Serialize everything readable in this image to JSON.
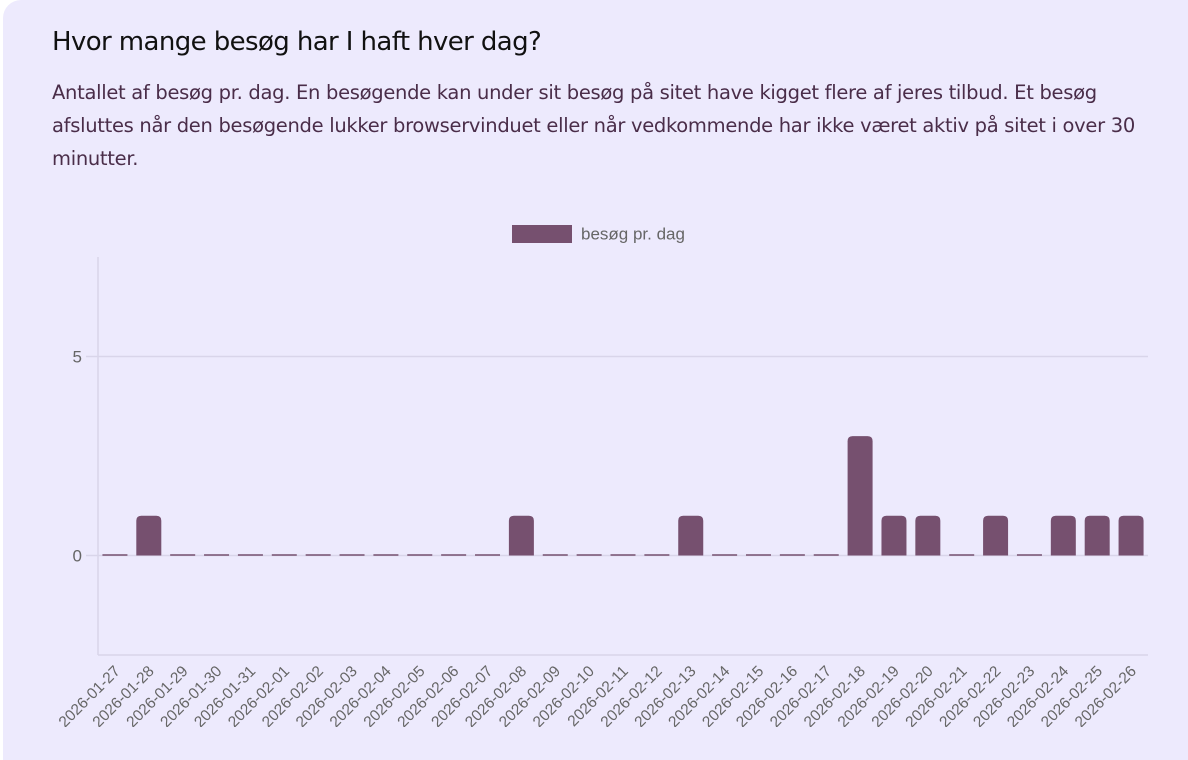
{
  "header": {
    "title": "Hvor mange besøg har I haft hver dag?",
    "description": "Antallet af besøg pr. dag. En besøgende kan under sit besøg på sitet have kigget flere af jeres tilbud. Et besøg afsluttes når den besøgende lukker browservinduet eller når vedkommende har ikke været aktiv på sitet i over 30 minutter."
  },
  "colors": {
    "card_background": "#EDEAFD",
    "bar": "#76506F",
    "grid": "#D9D5EA",
    "tick_text": "#666666",
    "description_text": "#4A2D49"
  },
  "chart_data": {
    "type": "bar",
    "title": "",
    "xlabel": "",
    "ylabel": "",
    "ylim": [
      -2.5,
      7.5
    ],
    "yticks": [
      0,
      5
    ],
    "grid": true,
    "legend_position": "top",
    "series": [
      {
        "name": "besøg pr. dag",
        "color": "#76506F",
        "values": [
          0,
          1,
          0,
          0,
          0,
          0,
          0,
          0,
          0,
          0,
          0,
          0,
          1,
          0,
          0,
          0,
          0,
          1,
          0,
          0,
          0,
          0,
          3,
          1,
          1,
          0,
          1,
          0,
          1,
          1,
          1
        ]
      }
    ],
    "categories": [
      "2026-01-27",
      "2026-01-28",
      "2026-01-29",
      "2026-01-30",
      "2026-01-31",
      "2026-02-01",
      "2026-02-02",
      "2026-02-03",
      "2026-02-04",
      "2026-02-05",
      "2026-02-06",
      "2026-02-07",
      "2026-02-08",
      "2026-02-09",
      "2026-02-10",
      "2026-02-11",
      "2026-02-12",
      "2026-02-13",
      "2026-02-14",
      "2026-02-15",
      "2026-02-16",
      "2026-02-17",
      "2026-02-18",
      "2026-02-19",
      "2026-02-20",
      "2026-02-21",
      "2026-02-22",
      "2026-02-23",
      "2026-02-24",
      "2026-02-25",
      "2026-02-26"
    ]
  }
}
